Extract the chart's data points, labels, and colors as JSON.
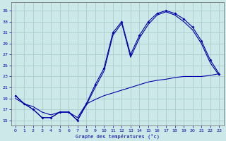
{
  "xlabel": "Graphe des températures (°c)",
  "bg_color": "#cce8e8",
  "grid_color": "#aacccc",
  "line_color": "#0000aa",
  "x_ticks": [
    0,
    1,
    2,
    3,
    4,
    5,
    6,
    7,
    8,
    9,
    10,
    11,
    12,
    13,
    14,
    15,
    16,
    17,
    18,
    19,
    20,
    21,
    22,
    23
  ],
  "y_ticks": [
    15,
    17,
    19,
    21,
    23,
    25,
    27,
    29,
    31,
    33,
    35
  ],
  "ylim": [
    14.0,
    36.5
  ],
  "xlim": [
    -0.5,
    23.5
  ],
  "line_main_x": [
    0,
    1,
    2,
    3,
    4,
    5,
    6,
    7,
    8,
    9,
    10,
    11,
    12,
    13,
    14,
    15,
    16,
    17,
    18,
    19,
    20,
    21,
    22,
    23
  ],
  "line_main_y": [
    19.5,
    18.0,
    17.0,
    15.5,
    15.5,
    16.5,
    16.5,
    15.0,
    18.0,
    21.5,
    24.5,
    31.0,
    33.0,
    27.0,
    30.5,
    33.0,
    34.5,
    35.0,
    34.5,
    33.5,
    32.0,
    29.5,
    26.0,
    23.5
  ],
  "line2_x": [
    0,
    1,
    2,
    3,
    4,
    5,
    6,
    7,
    8,
    9,
    10,
    11,
    12,
    13,
    14,
    15,
    16,
    17,
    18,
    19,
    20,
    21,
    22,
    23
  ],
  "line2_y": [
    19.5,
    18.0,
    17.0,
    15.5,
    15.5,
    16.5,
    16.5,
    15.0,
    17.8,
    21.0,
    24.0,
    30.5,
    32.7,
    26.5,
    30.0,
    32.5,
    34.2,
    34.8,
    34.2,
    33.0,
    31.5,
    29.0,
    25.5,
    23.2
  ],
  "line3_x": [
    0,
    1,
    2,
    3,
    4,
    5,
    6,
    7,
    8,
    9,
    10,
    11,
    12,
    13,
    14,
    15,
    16,
    17,
    18,
    19,
    20,
    21,
    22,
    23
  ],
  "line3_y": [
    19.0,
    18.0,
    17.5,
    16.5,
    16.0,
    16.5,
    16.5,
    15.5,
    18.0,
    18.8,
    19.5,
    20.0,
    20.5,
    21.0,
    21.5,
    22.0,
    22.3,
    22.5,
    22.8,
    23.0,
    23.0,
    23.0,
    23.2,
    23.5
  ]
}
